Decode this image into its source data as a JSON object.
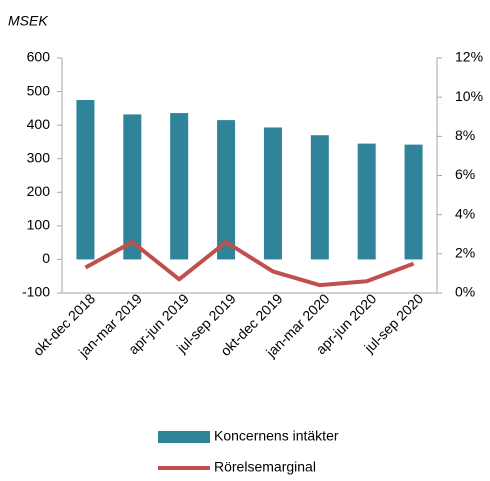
{
  "chart_data": {
    "type": "bar",
    "y_label": "MSEK",
    "categories": [
      "okt-dec 2018",
      "jan-mar 2019",
      "apr-jun 2019",
      "jul-sep 2019",
      "okt-dec 2019",
      "jan-mar 2020",
      "apr-jun 2020",
      "jul-sep 2020"
    ],
    "series": [
      {
        "name": "Koncernens intäkter",
        "type": "bar",
        "color": "#2f8499",
        "values": [
          475,
          432,
          436,
          415,
          393,
          370,
          345,
          342
        ]
      },
      {
        "name": "Rörelsemarginal",
        "type": "line",
        "axis": "y2",
        "color": "#c0504d",
        "values": [
          1.3,
          2.6,
          0.7,
          2.6,
          1.1,
          0.4,
          0.6,
          1.5
        ]
      }
    ],
    "ylim": [
      -100,
      600
    ],
    "yticks": [
      -100,
      0,
      100,
      200,
      300,
      400,
      500,
      600
    ],
    "y2lim": [
      0,
      12
    ],
    "y2ticks": [
      {
        "value": 0,
        "label": "0%"
      },
      {
        "value": 2,
        "label": "2%"
      },
      {
        "value": 4,
        "label": "4%"
      },
      {
        "value": 6,
        "label": "6%"
      },
      {
        "value": 8,
        "label": "8%"
      },
      {
        "value": 10,
        "label": "10%"
      },
      {
        "value": 12,
        "label": "12%"
      }
    ],
    "legend": "bottom"
  }
}
